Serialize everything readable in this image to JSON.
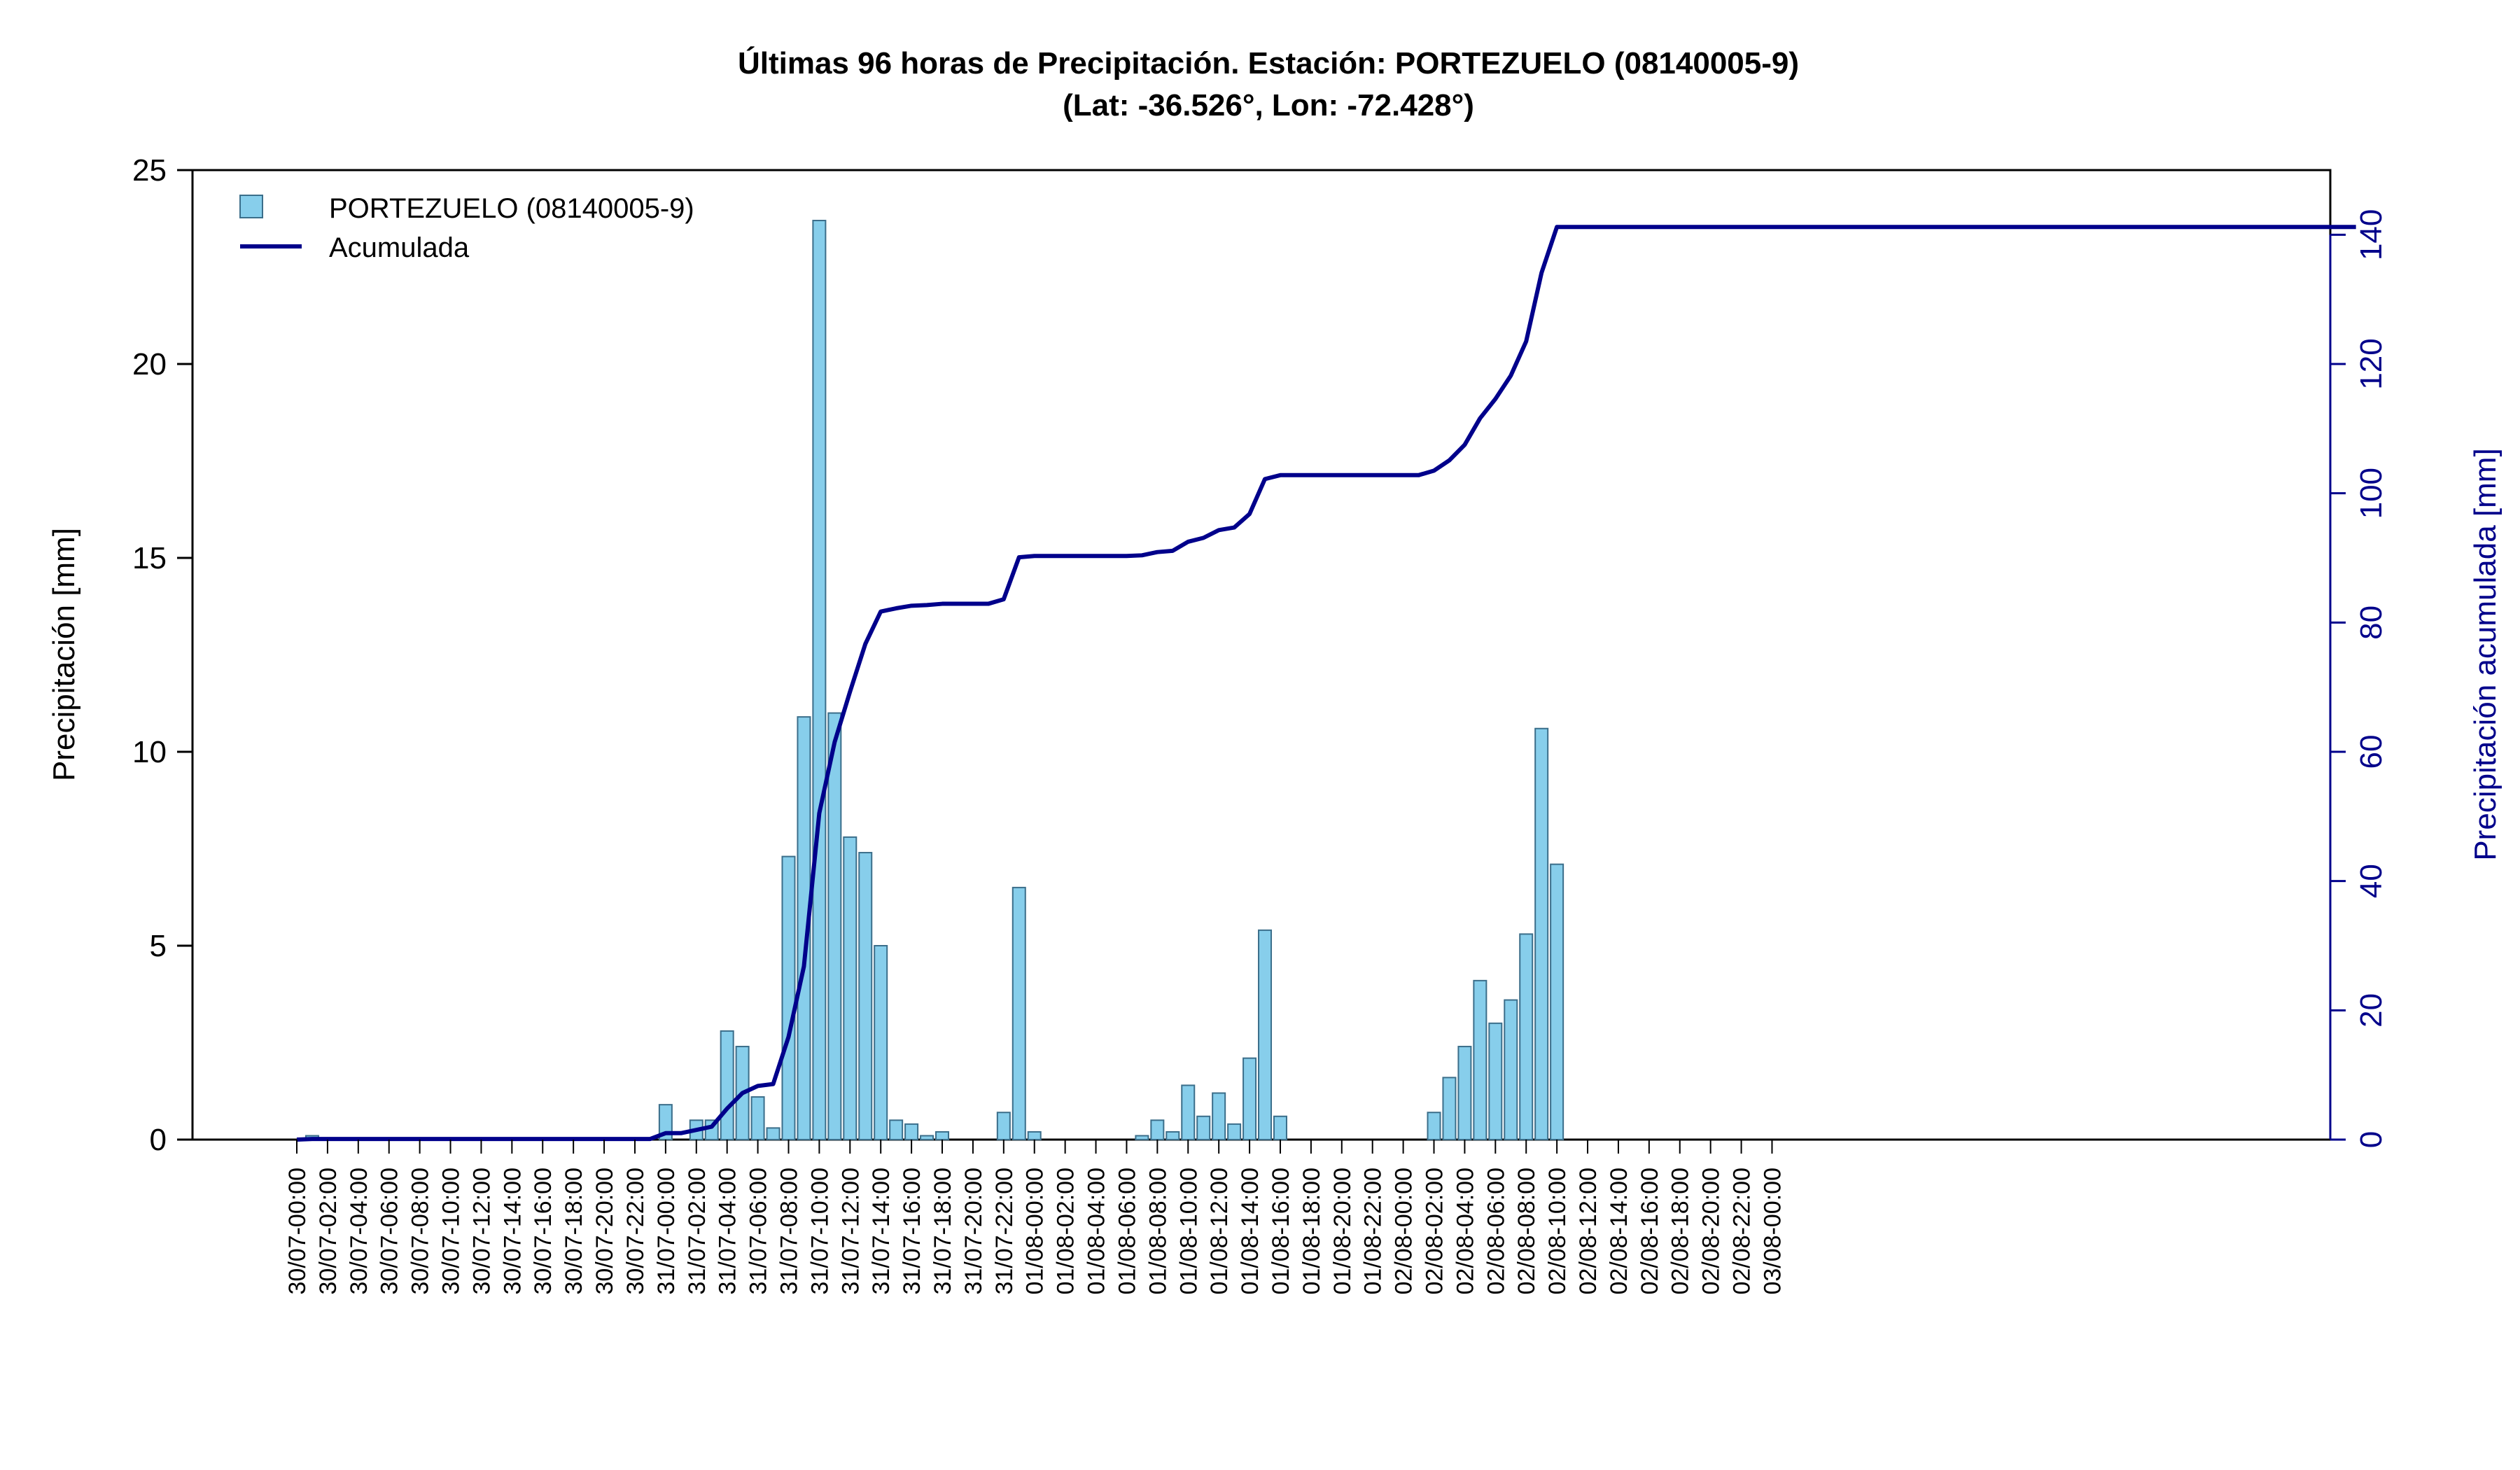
{
  "title_line1": "Últimas 96 horas de Precipitación. Estación: PORTEZUELO (08140005-9)",
  "title_line2": "(Lat: -36.526°, Lon: -72.428°)",
  "colors": {
    "bar_fill": "#87CEEB",
    "bar_stroke": "#3B6E8A",
    "line": "#00008B",
    "right_axis": "#00008B"
  },
  "chart_data": {
    "type": "bar",
    "title": "Últimas 96 horas de Precipitación. Estación: PORTEZUELO (08140005-9) (Lat: -36.526°, Lon: -72.428°)",
    "ylabel": "Precipitación [mm]",
    "y2label": "Precipitación acumulada [mm]",
    "ylim": [
      0,
      25
    ],
    "y2lim": [
      0,
      150
    ],
    "yticks": [
      0,
      5,
      10,
      15,
      20,
      25
    ],
    "y2ticks": [
      0,
      20,
      40,
      60,
      80,
      100,
      120,
      140
    ],
    "legend_position": "top-left",
    "xticklabels": [
      "30/07-00:00",
      "30/07-02:00",
      "30/07-04:00",
      "30/07-06:00",
      "30/07-08:00",
      "30/07-10:00",
      "30/07-12:00",
      "30/07-14:00",
      "30/07-16:00",
      "30/07-18:00",
      "30/07-20:00",
      "30/07-22:00",
      "31/07-00:00",
      "31/07-02:00",
      "31/07-04:00",
      "31/07-06:00",
      "31/07-08:00",
      "31/07-10:00",
      "31/07-12:00",
      "31/07-14:00",
      "31/07-16:00",
      "31/07-18:00",
      "31/07-20:00",
      "31/07-22:00",
      "01/08-00:00",
      "01/08-02:00",
      "01/08-04:00",
      "01/08-06:00",
      "01/08-08:00",
      "01/08-10:00",
      "01/08-12:00",
      "01/08-14:00",
      "01/08-16:00",
      "01/08-18:00",
      "01/08-20:00",
      "01/08-22:00",
      "02/08-00:00",
      "02/08-02:00",
      "02/08-04:00",
      "02/08-06:00",
      "02/08-08:00",
      "02/08-10:00",
      "02/08-12:00",
      "02/08-14:00",
      "02/08-16:00",
      "02/08-18:00",
      "02/08-20:00",
      "02/08-22:00",
      "03/08-00:00"
    ],
    "series": [
      {
        "name": "PORTEZUELO (08140005-9)",
        "type": "bar",
        "values": [
          0,
          0.1,
          0,
          0,
          0,
          0,
          0,
          0,
          0,
          0,
          0,
          0,
          0,
          0,
          0,
          0,
          0,
          0,
          0,
          0,
          0,
          0,
          0,
          0,
          0.9,
          0,
          0.5,
          0.5,
          2.8,
          2.4,
          1.1,
          0.3,
          7.3,
          10.9,
          23.7,
          11.0,
          7.8,
          7.4,
          5.0,
          0.5,
          0.4,
          0.1,
          0.2,
          0,
          0,
          0,
          0.7,
          6.5,
          0.2,
          0,
          0,
          0,
          0,
          0,
          0,
          0.1,
          0.5,
          0.2,
          1.4,
          0.6,
          1.2,
          0.4,
          2.1,
          5.4,
          0.6,
          0,
          0,
          0,
          0,
          0,
          0,
          0,
          0,
          0,
          0.7,
          1.6,
          2.4,
          4.1,
          3.0,
          3.6,
          5.3,
          10.6,
          7.1,
          0,
          0,
          0,
          0,
          0,
          0,
          0,
          0,
          0,
          0,
          0,
          0,
          0,
          0,
          0,
          0,
          0,
          0,
          0,
          0,
          0,
          0,
          0,
          0,
          0,
          0,
          0,
          0,
          0,
          0,
          0,
          0,
          0,
          0,
          0,
          0,
          0,
          0,
          0,
          0,
          0,
          0,
          0,
          0,
          0
        ]
      },
      {
        "name": "Acumulada",
        "type": "line",
        "axis": "right",
        "values": [
          0,
          0.1,
          0.1,
          0.1,
          0.1,
          0.1,
          0.1,
          0.1,
          0.1,
          0.1,
          0.1,
          0.1,
          0.1,
          0.1,
          0.1,
          0.1,
          0.1,
          0.1,
          0.1,
          0.1,
          0.1,
          0.1,
          0.1,
          0.1,
          1.0,
          1.0,
          1.5,
          2.0,
          4.8,
          7.2,
          8.3,
          8.6,
          15.9,
          26.8,
          50.5,
          61.5,
          69.3,
          76.7,
          81.7,
          82.2,
          82.6,
          82.7,
          82.9,
          82.9,
          82.9,
          82.9,
          83.6,
          90.1,
          90.3,
          90.3,
          90.3,
          90.3,
          90.3,
          90.3,
          90.3,
          90.4,
          90.9,
          91.1,
          92.5,
          93.1,
          94.3,
          94.7,
          96.8,
          102.2,
          102.8,
          102.8,
          102.8,
          102.8,
          102.8,
          102.8,
          102.8,
          102.8,
          102.8,
          102.8,
          103.5,
          105.1,
          107.5,
          111.6,
          114.6,
          118.2,
          123.5,
          134.1,
          141.2,
          141.2,
          141.2,
          141.2,
          141.2,
          141.2,
          141.2,
          141.2,
          141.2,
          141.2,
          141.2,
          141.2,
          141.2,
          141.2,
          141.2,
          141.2,
          141.2,
          141.2,
          141.2,
          141.2,
          141.2,
          141.2,
          141.2,
          141.2,
          141.2,
          141.2,
          141.2,
          141.2,
          141.2,
          141.2,
          141.2,
          141.2,
          141.2,
          141.2,
          141.2,
          141.2,
          141.2,
          141.2,
          141.2,
          141.2,
          141.2,
          141.2,
          141.2,
          141.2,
          141.2,
          141.2,
          141.2,
          141.2,
          141.2,
          141.2,
          141.2,
          141.2,
          141.2
        ]
      }
    ]
  }
}
